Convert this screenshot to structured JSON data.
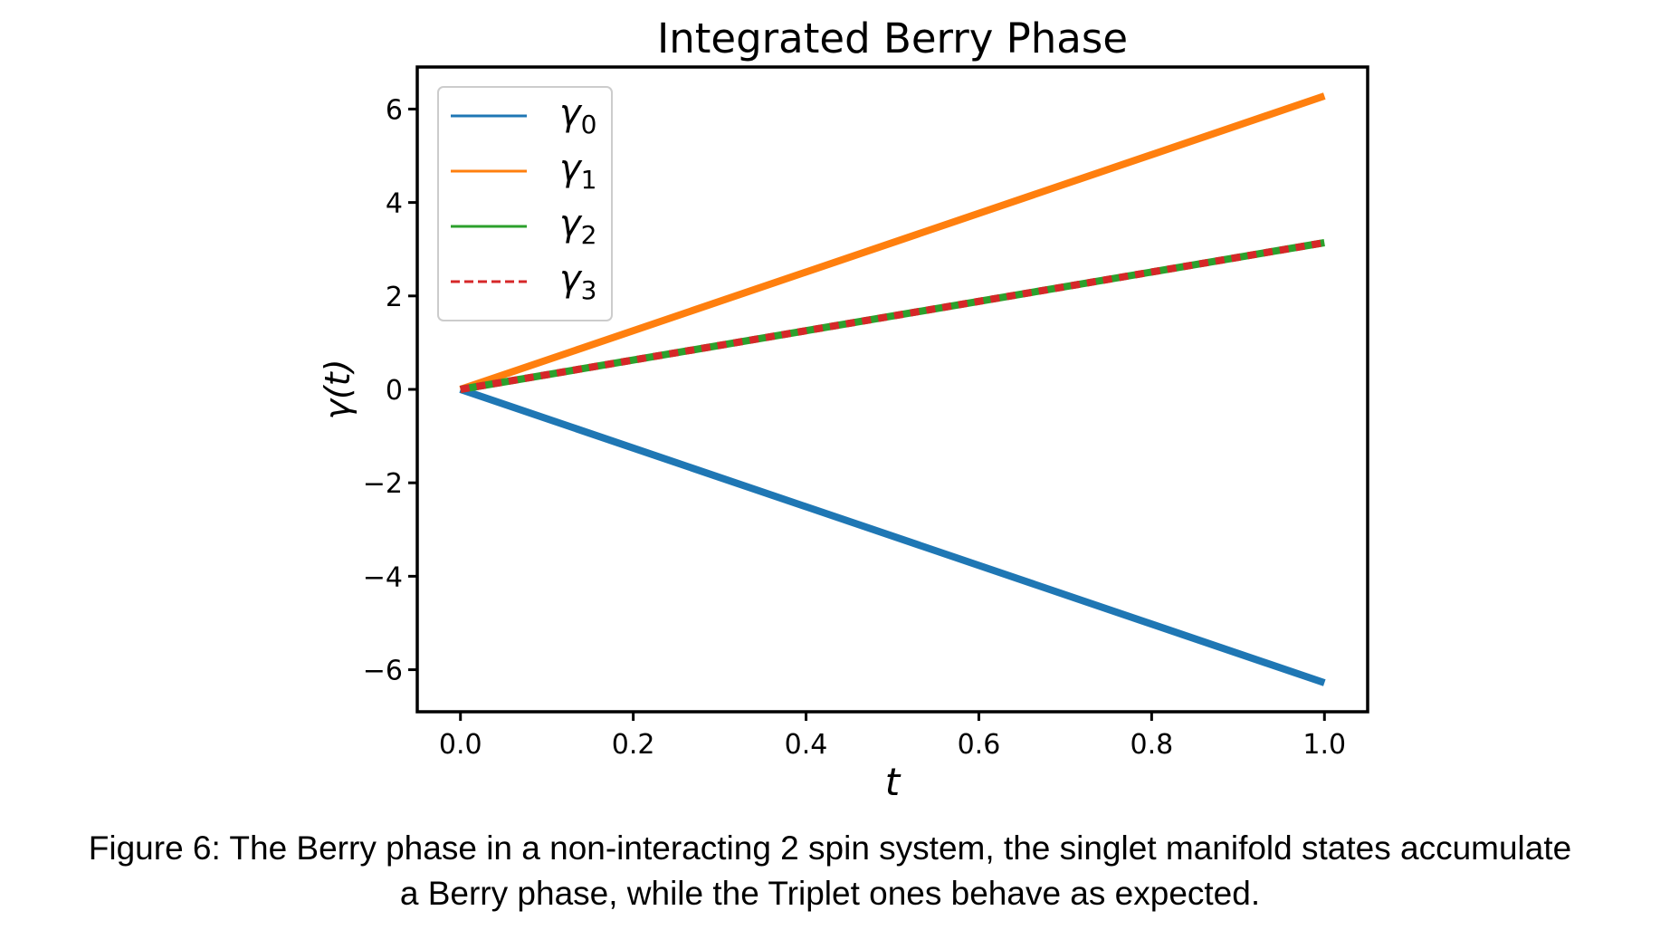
{
  "chart_data": {
    "type": "line",
    "title": "Integrated Berry Phase",
    "xlabel": "t",
    "ylabel": "γ(t)",
    "xlim": [
      -0.05,
      1.05
    ],
    "ylim": [
      -6.9,
      6.9
    ],
    "x_ticks": [
      0.0,
      0.2,
      0.4,
      0.6,
      0.8,
      1.0
    ],
    "x_tick_labels": [
      "0.0",
      "0.2",
      "0.4",
      "0.6",
      "0.8",
      "1.0"
    ],
    "y_ticks": [
      6,
      4,
      2,
      0,
      -2,
      -4,
      -6
    ],
    "y_tick_labels": [
      "6",
      "4",
      "2",
      "0",
      "−2",
      "−4",
      "−6"
    ],
    "grid": false,
    "legend_position": "top-left",
    "series": [
      {
        "name": "γ",
        "subscript": "0",
        "color": "#1f77b4",
        "style": "solid",
        "x": [
          0.0,
          1.0
        ],
        "y": [
          0.0,
          -6.28
        ]
      },
      {
        "name": "γ",
        "subscript": "1",
        "color": "#ff7f0e",
        "style": "solid",
        "x": [
          0.0,
          1.0
        ],
        "y": [
          0.0,
          6.28
        ]
      },
      {
        "name": "γ",
        "subscript": "2",
        "color": "#2ca02c",
        "style": "solid",
        "x": [
          0.0,
          1.0
        ],
        "y": [
          0.0,
          3.14
        ]
      },
      {
        "name": "γ",
        "subscript": "3",
        "color": "#d62728",
        "style": "dashed",
        "x": [
          0.0,
          1.0
        ],
        "y": [
          0.0,
          3.14
        ]
      }
    ]
  },
  "caption": {
    "line1": "Figure 6: The Berry phase in a non-interacting 2 spin system, the singlet manifold states accumulate",
    "line2": "a Berry phase, while the Triplet ones behave as expected."
  }
}
